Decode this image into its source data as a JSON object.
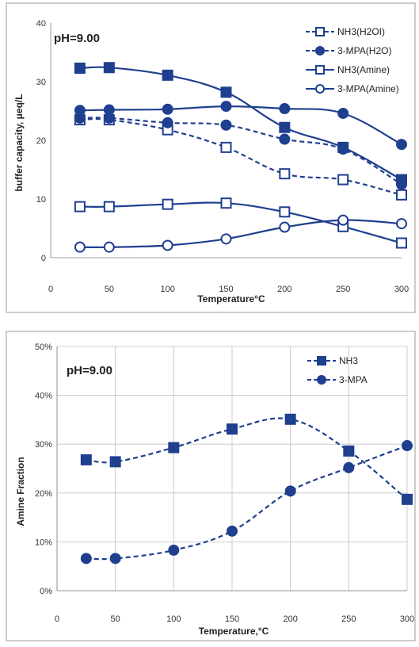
{
  "chart_data": [
    {
      "type": "line",
      "annotation": "pH=9.00",
      "xlabel": "Temperature°C",
      "ylabel": "buffer capacity,  μeq/L",
      "x_ticks": [
        "0",
        "50",
        "100",
        "150",
        "200",
        "250",
        "300"
      ],
      "y_ticks": [
        "0",
        "10",
        "20",
        "30",
        "40"
      ],
      "xlim": [
        0,
        300
      ],
      "ylim": [
        0,
        40
      ],
      "grid": false,
      "legend_position": "top-right",
      "x": [
        25,
        50,
        100,
        150,
        200,
        250,
        300
      ],
      "series": [
        {
          "name": "NH3(H2OI)",
          "values": [
            23.5,
            23.5,
            21.8,
            18.8,
            14.3,
            13.3,
            10.7
          ],
          "marker": "square",
          "fill": "open",
          "dash": "dashed"
        },
        {
          "name": "3-MPA(H2O)",
          "values": [
            23.8,
            23.8,
            23.0,
            22.6,
            20.2,
            18.5,
            12.5
          ],
          "marker": "circle",
          "fill": "filled",
          "dash": "dashed"
        },
        {
          "name": "NH3(Amine)",
          "values": [
            8.7,
            8.7,
            9.1,
            9.3,
            7.8,
            5.3,
            2.5
          ],
          "marker": "square",
          "fill": "open",
          "dash": "solid"
        },
        {
          "name": "3-MPA(Amine)",
          "values": [
            1.8,
            1.8,
            2.1,
            3.2,
            5.2,
            6.4,
            5.8
          ],
          "marker": "circle",
          "fill": "open",
          "dash": "solid"
        },
        {
          "name": "",
          "values": [
            32.3,
            32.4,
            31.1,
            28.2,
            22.2,
            18.8,
            13.3
          ],
          "marker": "square",
          "fill": "filled",
          "dash": "solid"
        },
        {
          "name": "",
          "values": [
            25.1,
            25.2,
            25.3,
            25.8,
            25.4,
            24.6,
            19.3
          ],
          "marker": "circle",
          "fill": "filled",
          "dash": "solid"
        }
      ]
    },
    {
      "type": "line",
      "annotation": "pH=9.00",
      "xlabel": "Temperature,°C",
      "ylabel": "Amine Fraction",
      "x_ticks": [
        "0",
        "50",
        "100",
        "150",
        "200",
        "250",
        "300"
      ],
      "y_ticks": [
        "0%",
        "10%",
        "20%",
        "30%",
        "40%",
        "50%"
      ],
      "xlim": [
        0,
        300
      ],
      "ylim": [
        0,
        0.5
      ],
      "grid": true,
      "legend_position": "top-right",
      "x": [
        25,
        50,
        100,
        150,
        200,
        250,
        300
      ],
      "series": [
        {
          "name": "NH3",
          "values": [
            0.268,
            0.264,
            0.293,
            0.331,
            0.351,
            0.286,
            0.187
          ],
          "marker": "square",
          "fill": "filled",
          "dash": "dashed"
        },
        {
          "name": "3-MPA",
          "values": [
            0.066,
            0.066,
            0.083,
            0.122,
            0.204,
            0.252,
            0.297
          ],
          "marker": "circle",
          "fill": "filled",
          "dash": "dashed"
        }
      ]
    }
  ],
  "colors": {
    "series": "#1f3f8f",
    "frame": "#9a9a9a",
    "grid": "#bfbfbf",
    "background": "#ffffff"
  }
}
